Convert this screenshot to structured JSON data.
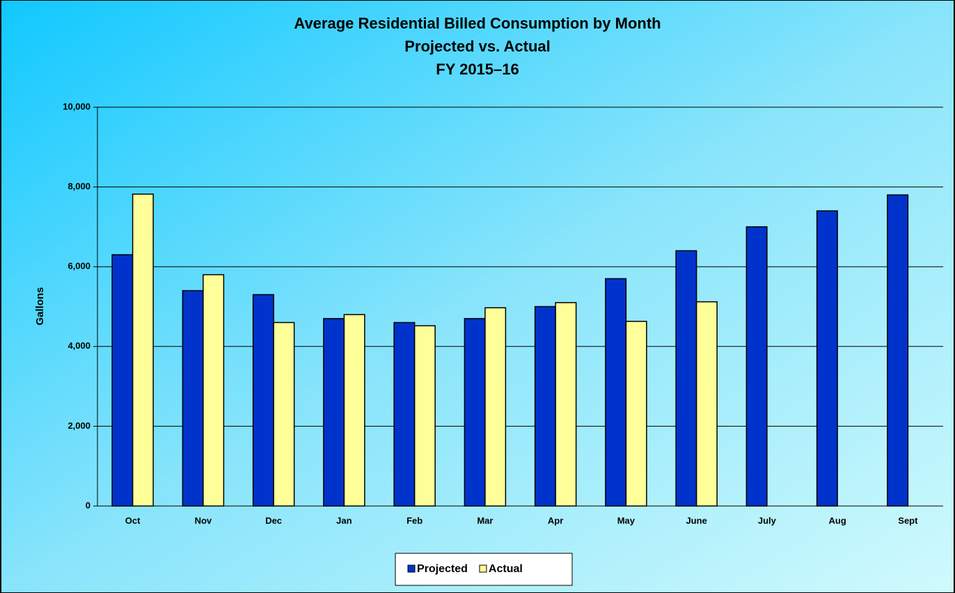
{
  "chart_data": {
    "type": "bar",
    "title": "Average Residential Billed Consumption by Month",
    "subtitle": [
      "Projected vs. Actual",
      "FY 2015–16"
    ],
    "y_label": "Gallons",
    "categories": [
      "Oct",
      "Nov",
      "Dec",
      "Jan",
      "Feb",
      "Mar",
      "Apr",
      "May",
      "June",
      "July",
      "Aug",
      "Sept"
    ],
    "series": [
      {
        "name": "Projected",
        "color": "#0033cc",
        "values": [
          6300,
          5400,
          5300,
          4700,
          4600,
          4700,
          5000,
          5700,
          6400,
          7000,
          7400,
          7800
        ]
      },
      {
        "name": "Actual",
        "color": "#ffff99",
        "values": [
          7820,
          5800,
          4600,
          4800,
          4520,
          4970,
          5100,
          4630,
          5120,
          null,
          null,
          null
        ]
      }
    ],
    "ylim": [
      0,
      10000
    ],
    "yticks": [
      0,
      {
        "value": 2000,
        "label": "2,000"
      },
      {
        "value": 4000,
        "label": "4,000"
      },
      {
        "value": 6000,
        "label": "6,000"
      },
      {
        "value": 8000,
        "label": "8,000"
      },
      {
        "value": 10000,
        "label": "10,000"
      }
    ],
    "grid": true,
    "legend": "bottom"
  }
}
